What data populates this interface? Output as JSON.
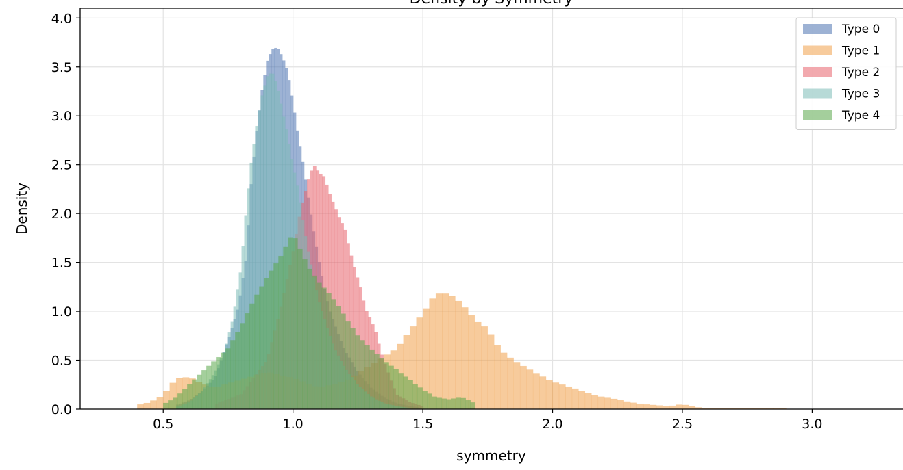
{
  "chart_data": {
    "type": "histogram",
    "title": "Density by Symmetry",
    "xlabel": "symmetry",
    "ylabel": "Density",
    "xlim": [
      0.18,
      3.35
    ],
    "ylim": [
      0,
      4.1
    ],
    "xticks": [
      0.5,
      1.0,
      1.5,
      2.0,
      2.5,
      3.0
    ],
    "yticks": [
      0.0,
      0.5,
      1.0,
      1.5,
      2.0,
      2.5,
      3.0,
      3.5,
      4.0
    ],
    "tick_decimals": 1,
    "grid": true,
    "legend_position": "top-right",
    "series": [
      {
        "name": "Type 0",
        "color": "#4c72b0",
        "x": [
          0.55,
          0.6,
          0.65,
          0.7,
          0.73,
          0.76,
          0.79,
          0.82,
          0.84,
          0.86,
          0.88,
          0.9,
          0.92,
          0.94,
          0.96,
          0.98,
          1.0,
          1.02,
          1.04,
          1.06,
          1.08,
          1.1,
          1.12,
          1.14,
          1.17,
          1.2,
          1.25,
          1.3,
          1.35,
          1.4,
          1.45,
          1.5
        ],
        "y": [
          0.04,
          0.09,
          0.18,
          0.32,
          0.55,
          0.78,
          1.05,
          1.55,
          2.35,
          2.85,
          3.25,
          3.55,
          3.68,
          3.7,
          3.6,
          3.45,
          3.15,
          2.8,
          2.5,
          2.15,
          1.82,
          1.52,
          1.25,
          1.02,
          0.8,
          0.6,
          0.38,
          0.22,
          0.12,
          0.06,
          0.03,
          0.01
        ],
        "bin_width": 0.0105
      },
      {
        "name": "Type 1",
        "color": "#f0a04b",
        "x": [
          0.4,
          0.45,
          0.5,
          0.55,
          0.6,
          0.65,
          0.7,
          0.8,
          0.9,
          1.0,
          1.1,
          1.2,
          1.3,
          1.4,
          1.5,
          1.55,
          1.6,
          1.65,
          1.7,
          1.75,
          1.8,
          1.85,
          1.9,
          1.95,
          2.0,
          2.05,
          2.1,
          2.15,
          2.2,
          2.25,
          2.3,
          2.35,
          2.4,
          2.45,
          2.5,
          2.55,
          2.6,
          2.7,
          2.8,
          2.9
        ],
        "y": [
          0.04,
          0.07,
          0.14,
          0.31,
          0.33,
          0.26,
          0.22,
          0.3,
          0.38,
          0.32,
          0.22,
          0.28,
          0.45,
          0.62,
          0.98,
          1.18,
          1.18,
          1.08,
          0.92,
          0.82,
          0.6,
          0.5,
          0.42,
          0.35,
          0.28,
          0.24,
          0.2,
          0.15,
          0.12,
          0.1,
          0.07,
          0.05,
          0.04,
          0.03,
          0.05,
          0.02,
          0.01,
          0.01,
          0.01,
          0.01
        ],
        "bin_width": 0.025
      },
      {
        "name": "Type 2",
        "color": "#e8636b",
        "x": [
          0.7,
          0.8,
          0.9,
          0.95,
          1.0,
          1.03,
          1.06,
          1.08,
          1.1,
          1.12,
          1.14,
          1.16,
          1.18,
          1.2,
          1.22,
          1.24,
          1.26,
          1.28,
          1.3,
          1.32,
          1.34,
          1.36,
          1.38,
          1.4,
          1.45,
          1.5
        ],
        "y": [
          0.05,
          0.15,
          0.5,
          1.0,
          1.6,
          2.05,
          2.35,
          2.5,
          2.42,
          2.38,
          2.22,
          2.08,
          1.95,
          1.85,
          1.62,
          1.42,
          1.25,
          1.02,
          0.92,
          0.78,
          0.58,
          0.42,
          0.28,
          0.15,
          0.07,
          0.03
        ],
        "bin_width": 0.0118
      },
      {
        "name": "Type 3",
        "color": "#7bbcb6",
        "x": [
          0.55,
          0.6,
          0.65,
          0.7,
          0.74,
          0.77,
          0.8,
          0.82,
          0.84,
          0.86,
          0.88,
          0.9,
          0.92,
          0.94,
          0.96,
          0.98,
          1.0,
          1.02,
          1.04,
          1.06,
          1.08,
          1.1,
          1.13,
          1.16,
          1.2,
          1.25,
          1.3,
          1.35,
          1.4,
          1.45
        ],
        "y": [
          0.02,
          0.07,
          0.18,
          0.38,
          0.62,
          0.95,
          1.45,
          2.05,
          2.55,
          2.9,
          3.2,
          3.4,
          3.45,
          3.3,
          3.05,
          2.8,
          2.5,
          2.25,
          1.9,
          1.6,
          1.35,
          1.1,
          0.85,
          0.62,
          0.42,
          0.25,
          0.13,
          0.06,
          0.03,
          0.01
        ],
        "bin_width": 0.0105
      },
      {
        "name": "Type 4",
        "color": "#5aa84a",
        "x": [
          0.5,
          0.55,
          0.6,
          0.65,
          0.7,
          0.75,
          0.8,
          0.85,
          0.9,
          0.95,
          1.0,
          1.03,
          1.06,
          1.1,
          1.15,
          1.2,
          1.25,
          1.3,
          1.35,
          1.4,
          1.45,
          1.5,
          1.55,
          1.6,
          1.65,
          1.7
        ],
        "y": [
          0.05,
          0.12,
          0.25,
          0.38,
          0.5,
          0.62,
          0.85,
          1.12,
          1.35,
          1.55,
          1.8,
          1.62,
          1.45,
          1.3,
          1.15,
          0.95,
          0.75,
          0.62,
          0.5,
          0.4,
          0.3,
          0.2,
          0.12,
          0.1,
          0.12,
          0.06
        ],
        "bin_width": 0.0185
      }
    ]
  }
}
